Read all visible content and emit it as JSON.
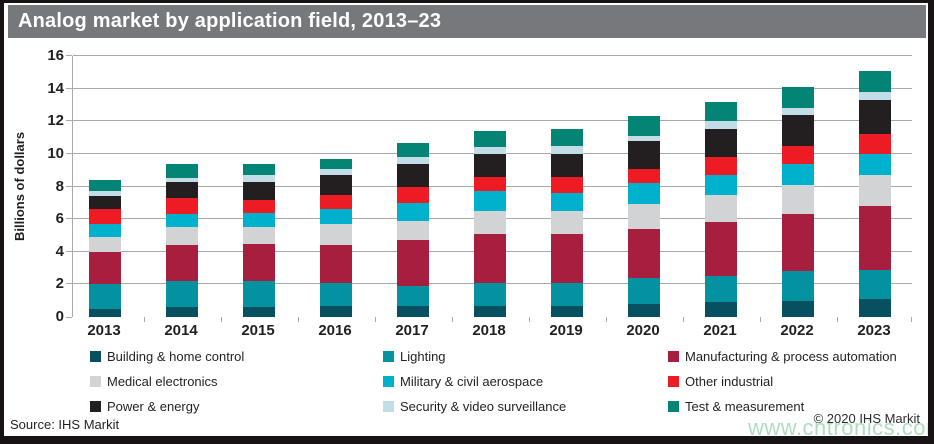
{
  "title": "Analog market by application field, 2013–23",
  "chart_data": {
    "type": "bar",
    "stacked": true,
    "title": "Analog market by application field, 2013–23",
    "xlabel": "",
    "ylabel": "Billions of dollars",
    "ylim": [
      0,
      16
    ],
    "ytick_step": 2,
    "ytick_labels": [
      "0",
      "2",
      "4",
      "6",
      "8",
      "10",
      "12",
      "14",
      "16"
    ],
    "grid": true,
    "legend_position": "bottom",
    "categories": [
      "2013",
      "2014",
      "2015",
      "2016",
      "2017",
      "2018",
      "2019",
      "2020",
      "2021",
      "2022",
      "2023"
    ],
    "series": [
      {
        "name": "Building & home control",
        "color": "#065060",
        "values": [
          0.5,
          0.6,
          0.6,
          0.7,
          0.7,
          0.7,
          0.7,
          0.8,
          0.9,
          1.0,
          1.1
        ]
      },
      {
        "name": "Lighting",
        "color": "#0492a0",
        "values": [
          1.5,
          1.6,
          1.6,
          1.4,
          1.2,
          1.4,
          1.4,
          1.6,
          1.6,
          1.8,
          1.8
        ]
      },
      {
        "name": "Manufacturing & process automation",
        "color": "#a81e3e",
        "values": [
          2.0,
          2.2,
          2.3,
          2.3,
          2.8,
          3.0,
          3.0,
          3.0,
          3.3,
          3.5,
          3.9
        ]
      },
      {
        "name": "Medical electronics",
        "color": "#d1d3d4",
        "values": [
          0.9,
          1.1,
          1.0,
          1.3,
          1.2,
          1.4,
          1.4,
          1.5,
          1.7,
          1.8,
          1.9
        ]
      },
      {
        "name": "Military & civil aerospace",
        "color": "#00b1ce",
        "values": [
          0.8,
          0.8,
          0.9,
          0.9,
          1.1,
          1.2,
          1.1,
          1.3,
          1.2,
          1.3,
          1.3
        ]
      },
      {
        "name": "Other industrial",
        "color": "#ed1c24",
        "values": [
          0.9,
          1.0,
          0.8,
          0.9,
          1.0,
          0.9,
          1.0,
          0.9,
          1.1,
          1.1,
          1.2
        ]
      },
      {
        "name": "Power & energy",
        "color": "#231f20",
        "values": [
          0.8,
          1.0,
          1.1,
          1.2,
          1.4,
          1.4,
          1.4,
          1.7,
          1.7,
          1.9,
          2.1
        ]
      },
      {
        "name": "Security & video surveillance",
        "color": "#c3dde7",
        "values": [
          0.3,
          0.2,
          0.4,
          0.4,
          0.4,
          0.4,
          0.5,
          0.3,
          0.5,
          0.4,
          0.5
        ]
      },
      {
        "name": "Test & measurement",
        "color": "#048474",
        "values": [
          0.7,
          0.9,
          0.7,
          0.6,
          0.9,
          1.0,
          1.0,
          1.2,
          1.2,
          1.3,
          1.3
        ]
      }
    ],
    "totals": [
      8.4,
      9.4,
      9.4,
      9.7,
      10.7,
      11.4,
      11.5,
      12.3,
      13.2,
      14.1,
      15.1
    ]
  },
  "footer": {
    "source": "Source: IHS Markit",
    "copyright": "© 2020 IHS Markit"
  },
  "watermark": {
    "text": "www.cntronics.com",
    "color": "#9fd8b2"
  },
  "colors": {
    "title_bar": "#77787b",
    "frame": "#171314",
    "gridline": "#a7a9ac",
    "axis_text": "#231f20"
  }
}
